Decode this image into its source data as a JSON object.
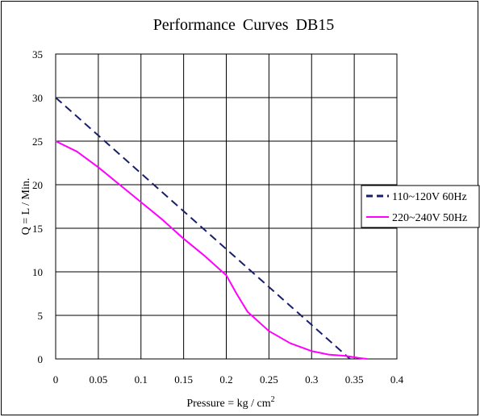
{
  "chart_data": {
    "type": "line",
    "title": "Performance Curves DB15",
    "xlabel": "Pressure = kg / cm",
    "xlabel_superscript": "2",
    "ylabel": "Q = L / Min.",
    "xlim": [
      0,
      0.4
    ],
    "ylim": [
      0,
      35
    ],
    "x_ticks": [
      "0",
      "0.05",
      "0.1",
      "0.15",
      "0.2",
      "0.25",
      "0.3",
      "0.35",
      "0.4"
    ],
    "y_ticks": [
      "0",
      "5",
      "10",
      "15",
      "20",
      "25",
      "30",
      "35"
    ],
    "grid": true,
    "legend_position": "right",
    "series": [
      {
        "name": "110~120V 60Hz",
        "color": "#1a1f6b",
        "dash": true,
        "x": [
          0,
          0.345
        ],
        "y": [
          30,
          0
        ]
      },
      {
        "name": "220~240V 50Hz",
        "color": "#ff00ff",
        "dash": false,
        "x": [
          0,
          0.025,
          0.05,
          0.075,
          0.1,
          0.125,
          0.15,
          0.175,
          0.2,
          0.212,
          0.225,
          0.25,
          0.275,
          0.3,
          0.32,
          0.34,
          0.355,
          0.365
        ],
        "y": [
          25,
          23.8,
          22,
          20,
          18,
          16,
          13.8,
          11.8,
          9.6,
          7.5,
          5.4,
          3.2,
          1.8,
          0.9,
          0.5,
          0.35,
          0.12,
          0
        ]
      }
    ]
  }
}
